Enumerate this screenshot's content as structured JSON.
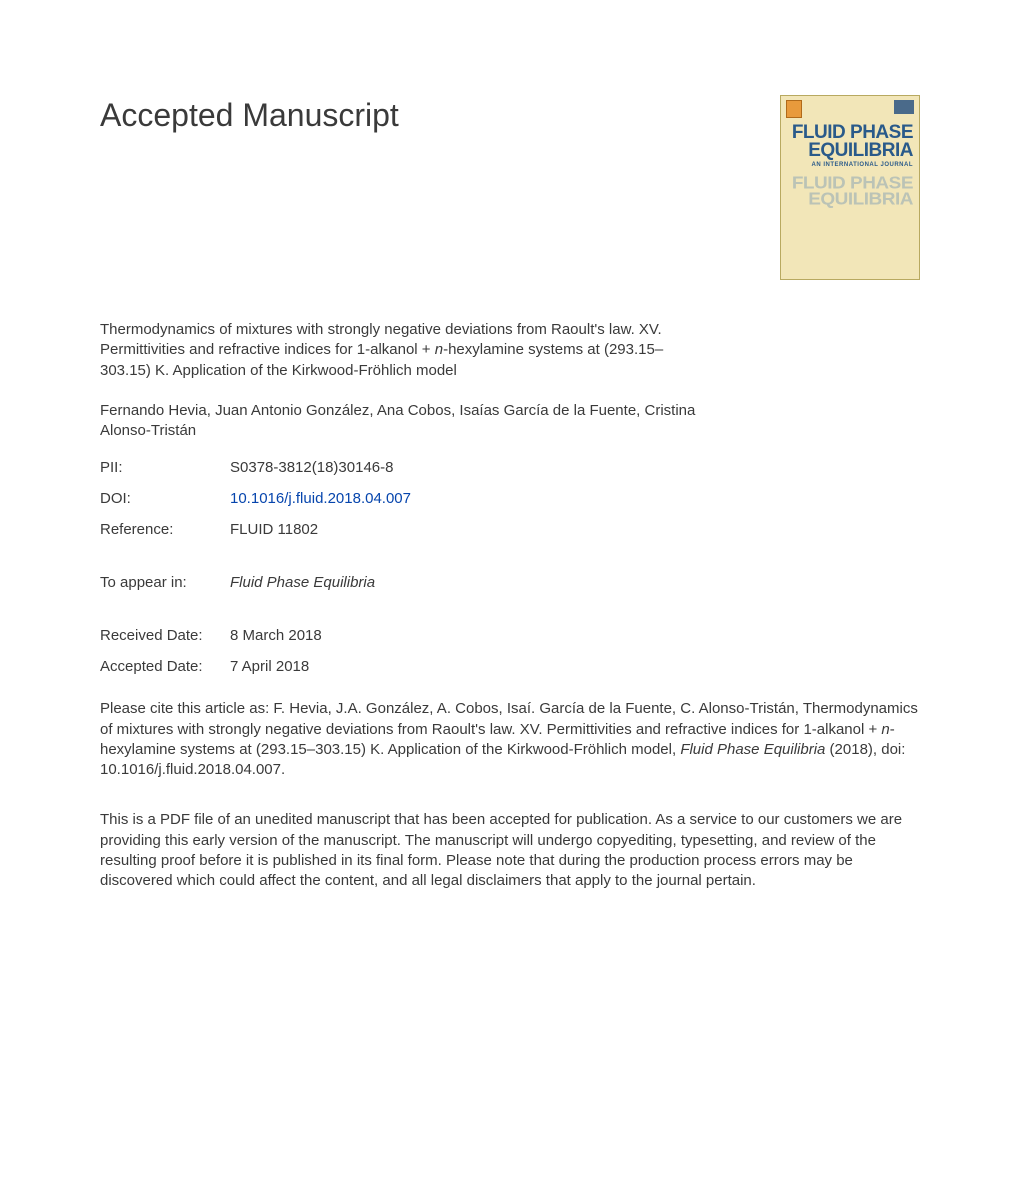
{
  "header": {
    "title": "Accepted Manuscript"
  },
  "journal_cover": {
    "line1": "FLUID PHASE",
    "line2": "EQUILIBRIA",
    "subline": "AN INTERNATIONAL JOURNAL",
    "bg_color": "#f2e6b8",
    "text_color": "#2a5a8a",
    "reflection_color": "#7a9ab5"
  },
  "article": {
    "title_pre": "Thermodynamics of mixtures with strongly negative deviations from Raoult's law. XV. Permittivities and refractive indices for 1-alkanol + ",
    "title_italic": "n",
    "title_post": "-hexylamine systems at (293.15–303.15) K. Application of the Kirkwood-Fröhlich model"
  },
  "authors": "Fernando Hevia, Juan Antonio González, Ana Cobos, Isaías García de la Fuente, Cristina Alonso-Tristán",
  "meta": {
    "pii_label": "PII:",
    "pii_value": "S0378-3812(18)30146-8",
    "doi_label": "DOI:",
    "doi_value": "10.1016/j.fluid.2018.04.007",
    "ref_label": "Reference:",
    "ref_value": "FLUID 11802",
    "appear_label": "To appear in:",
    "appear_value": "Fluid Phase Equilibria",
    "received_label": "Received Date:",
    "received_value": "8 March 2018",
    "accepted_label": "Accepted Date:",
    "accepted_value": "7 April 2018"
  },
  "citation": {
    "pre": "Please cite this article as: F. Hevia, J.A. González, A. Cobos, Isaí. García de la Fuente, C. Alonso-Tristán, Thermodynamics of mixtures with strongly negative deviations from Raoult's law. XV. Permittivities and refractive indices for 1-alkanol + ",
    "italic1": "n",
    "mid": "-hexylamine systems at (293.15–303.15) K. Application of the Kirkwood-Fröhlich model, ",
    "italic2": "Fluid Phase Equilibria",
    "post": " (2018), doi: 10.1016/j.fluid.2018.04.007."
  },
  "disclaimer": "This is a PDF file of an unedited manuscript that has been accepted for publication. As a service to our customers we are providing this early version of the manuscript. The manuscript will undergo copyediting, typesetting, and review of the resulting proof before it is published in its final form. Please note that during the production process errors may be discovered which could affect the content, and all legal disclaimers that apply to the journal pertain.",
  "colors": {
    "text": "#3a3a3a",
    "link": "#0645ad",
    "background": "#ffffff"
  },
  "typography": {
    "header_fontsize": 32,
    "body_fontsize": 15,
    "font_family": "Arial"
  }
}
